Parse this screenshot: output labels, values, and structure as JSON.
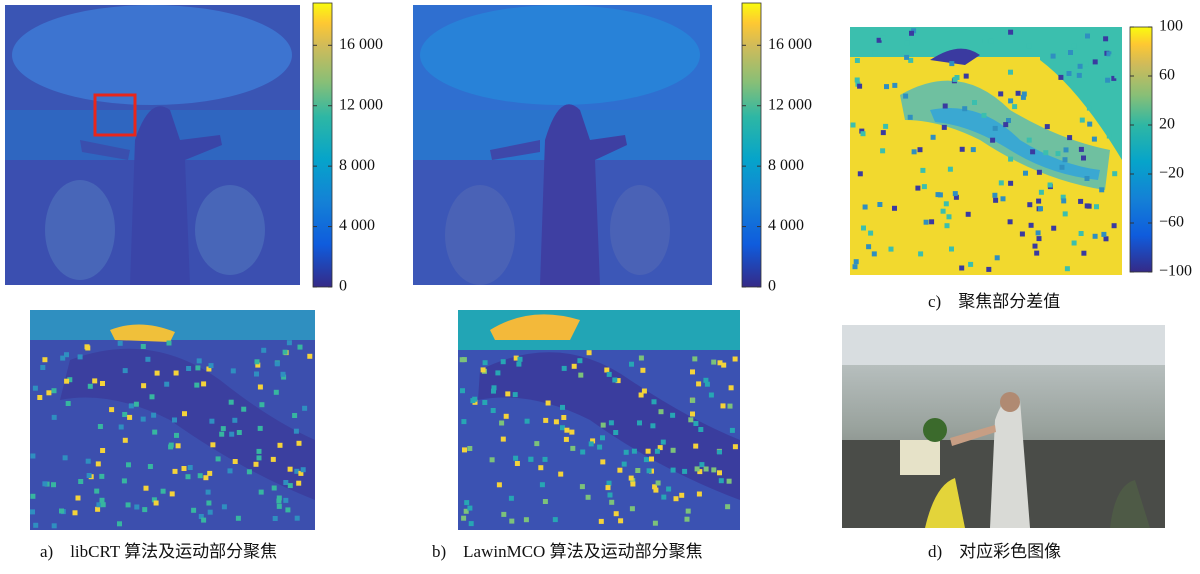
{
  "panels": [
    {
      "caption": "a)　libCRT 算法及运动部分聚焦"
    },
    {
      "caption": "b)　LawinMCO 算法及运动部分聚焦"
    },
    {
      "caption": "c)　聚焦部分差值"
    },
    {
      "caption": "d)　对应彩色图像"
    }
  ],
  "colorbars": [
    {
      "lim": [
        0,
        18800
      ],
      "ticks": [
        0,
        {
          "value": 4000,
          "label": "4 000"
        },
        {
          "value": 8000,
          "label": "8 000"
        },
        {
          "value": 12000,
          "label": "12 000"
        },
        {
          "value": 16000,
          "label": "16 000"
        }
      ]
    },
    {
      "lim": [
        0,
        18800
      ],
      "ticks": [
        0,
        {
          "value": 4000,
          "label": "4 000"
        },
        {
          "value": 8000,
          "label": "8 000"
        },
        {
          "value": 12000,
          "label": "12 000"
        },
        {
          "value": 16000,
          "label": "16 000"
        }
      ]
    },
    {
      "lim": [
        -100,
        100
      ],
      "ticks": [
        {
          "value": -100,
          "label": "−100"
        },
        {
          "value": -60,
          "label": "−60"
        },
        {
          "value": -20,
          "label": "−20"
        },
        20,
        60,
        100
      ]
    }
  ]
}
